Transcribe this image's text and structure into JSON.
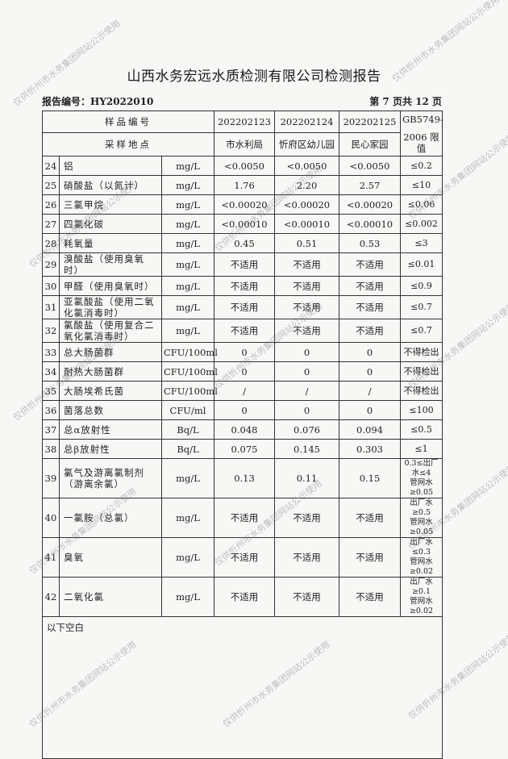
{
  "header": {
    "title": "山西水务宏远水质检测有限公司检测报告",
    "report_no": "报告编号：HY2022010",
    "page_info": "第 7 页共 12 页"
  },
  "table": {
    "sample_no_label": "样品编号",
    "site_label": "采样地点",
    "samples": [
      "202202123",
      "202202124",
      "202202125"
    ],
    "sites": [
      "市水利局",
      "忻府区幼儿园",
      "民心家园"
    ],
    "standard_label_1": "GB5749-",
    "standard_label_2": "2006 限值",
    "rows": [
      {
        "no": "24",
        "item": "铝",
        "unit": "mg/L",
        "v": [
          "<0.0050",
          "<0.0050",
          "<0.0050"
        ],
        "limit": "≤0.2"
      },
      {
        "no": "25",
        "item": "硝酸盐（以氮计）",
        "unit": "mg/L",
        "v": [
          "1.76",
          "2.20",
          "2.57"
        ],
        "limit": "≤10"
      },
      {
        "no": "26",
        "item": "三氯甲烷",
        "unit": "mg/L",
        "v": [
          "<0.00020",
          "<0.00020",
          "<0.00020"
        ],
        "limit": "≤0.06"
      },
      {
        "no": "27",
        "item": "四氯化碳",
        "unit": "mg/L",
        "v": [
          "<0.00010",
          "<0.00010",
          "<0.00010"
        ],
        "limit": "≤0.002"
      },
      {
        "no": "28",
        "item": "耗氧量",
        "unit": "mg/L",
        "v": [
          "0.45",
          "0.51",
          "0.53"
        ],
        "limit": "≤3"
      },
      {
        "no": "29",
        "item": "溴酸盐（使用臭氧时）",
        "unit": "mg/L",
        "v": [
          "不适用",
          "不适用",
          "不适用"
        ],
        "limit": "≤0.01"
      },
      {
        "no": "30",
        "item": "甲醛（使用臭氧时）",
        "unit": "mg/L",
        "v": [
          "不适用",
          "不适用",
          "不适用"
        ],
        "limit": "≤0.9"
      },
      {
        "no": "31",
        "item": "亚氯酸盐（使用二氧化氯消毒时）",
        "unit": "mg/L",
        "v": [
          "不适用",
          "不适用",
          "不适用"
        ],
        "limit": "≤0.7"
      },
      {
        "no": "32",
        "item": "氯酸盐（使用复合二氧化氯消毒时）",
        "unit": "mg/L",
        "v": [
          "不适用",
          "不适用",
          "不适用"
        ],
        "limit": "≤0.7"
      },
      {
        "no": "33",
        "item": "总大肠菌群",
        "unit": "CFU/100ml",
        "v": [
          "0",
          "0",
          "0"
        ],
        "limit": "不得检出"
      },
      {
        "no": "34",
        "item": "耐热大肠菌群",
        "unit": "CFU/100ml",
        "v": [
          "0",
          "0",
          "0"
        ],
        "limit": "不得检出"
      },
      {
        "no": "35",
        "item": "大肠埃希氏菌",
        "unit": "CFU/100ml",
        "v": [
          "/",
          "/",
          "/"
        ],
        "limit": "不得检出"
      },
      {
        "no": "36",
        "item": "菌落总数",
        "unit": "CFU/ml",
        "v": [
          "0",
          "0",
          "0"
        ],
        "limit": "≤100"
      },
      {
        "no": "37",
        "item": "总α放射性",
        "unit": "Bq/L",
        "v": [
          "0.048",
          "0.076",
          "0.094"
        ],
        "limit": "≤0.5"
      },
      {
        "no": "38",
        "item": "总β放射性",
        "unit": "Bq/L",
        "v": [
          "0.075",
          "0.145",
          "0.303"
        ],
        "limit": "≤1"
      },
      {
        "no": "39",
        "item": "氯气及游离氯制剂（游离余氯）",
        "unit": "mg/L",
        "v": [
          "0.13",
          "0.11",
          "0.15"
        ],
        "limit": "0.3≤出厂水≤4",
        "limit2": "管网水≥0.05"
      },
      {
        "no": "40",
        "item": "一氯胺（总氯）",
        "unit": "mg/L",
        "v": [
          "不适用",
          "不适用",
          "不适用"
        ],
        "limit": "出厂水≥0.5",
        "limit2": "管网水≥0.05"
      },
      {
        "no": "41",
        "item": "臭氧",
        "unit": "mg/L",
        "v": [
          "不适用",
          "不适用",
          "不适用"
        ],
        "limit": "出厂水≤0.3",
        "limit2": "管网水≥0.02"
      },
      {
        "no": "42",
        "item": "二氧化氯",
        "unit": "mg/L",
        "v": [
          "不适用",
          "不适用",
          "不适用"
        ],
        "limit": "出厂水≥0.1",
        "limit2": "管网水≥0.02"
      }
    ],
    "footer_note": "以下空白"
  },
  "watermark": "仅供忻州市水务集团网站公示使用"
}
